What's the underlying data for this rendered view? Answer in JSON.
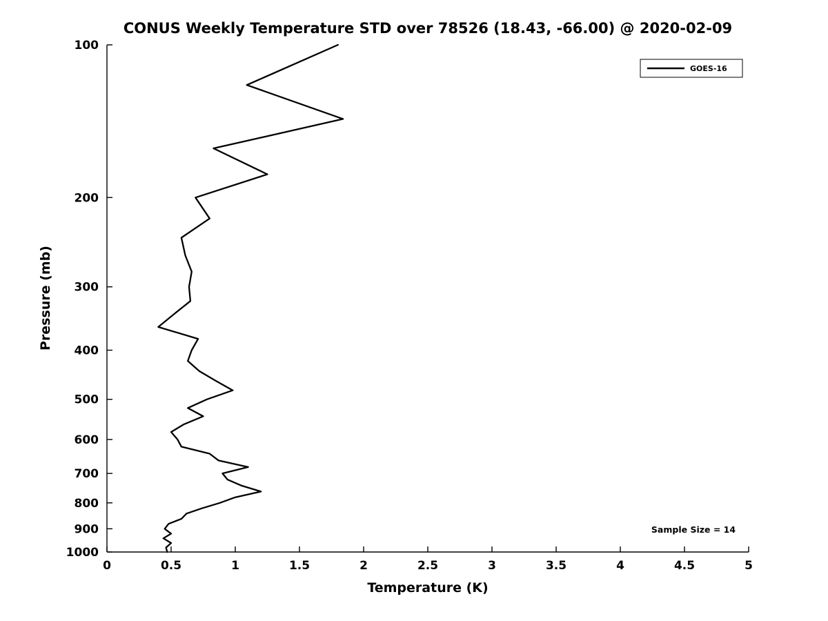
{
  "title": "CONUS Weekly Temperature STD over 78526 (18.43, -66.00) @ 2020-02-09",
  "legend": {
    "label": "GOES-16",
    "line_color": "#000000"
  },
  "annotation": {
    "sample_size_label": "Sample Size = 14"
  },
  "axes": {
    "x": {
      "label": "Temperature (K)",
      "min": 0,
      "max": 5,
      "tick_values": [
        0,
        0.5,
        1,
        1.5,
        2,
        2.5,
        3,
        3.5,
        4,
        4.5,
        5
      ],
      "tick_labels": [
        "0",
        "0.5",
        "1",
        "1.5",
        "2",
        "2.5",
        "3",
        "3.5",
        "4",
        "4.5",
        "5"
      ]
    },
    "y": {
      "label": "Pressure (mb)",
      "min": 100,
      "max": 1000,
      "scale": "log",
      "direction": "increasing-down",
      "tick_values": [
        100,
        200,
        300,
        400,
        500,
        600,
        700,
        800,
        900,
        1000
      ],
      "tick_labels": [
        "100",
        "200",
        "300",
        "400",
        "500",
        "600",
        "700",
        "800",
        "900",
        "1000"
      ]
    }
  },
  "chart_data": {
    "type": "line",
    "title": "CONUS Weekly Temperature STD over 78526 (18.43, -66.00) @ 2020-02-09",
    "xlabel": "Temperature (K)",
    "ylabel": "Pressure (mb)",
    "xlim": [
      0,
      5
    ],
    "ylim": [
      100,
      1000
    ],
    "yscale": "log",
    "grid": false,
    "legend_position": "top-right",
    "series": [
      {
        "name": "GOES-16",
        "color": "#000000",
        "pressure_mb": [
          100,
          120,
          140,
          160,
          180,
          200,
          220,
          240,
          260,
          280,
          300,
          320,
          340,
          360,
          380,
          400,
          420,
          440,
          460,
          480,
          500,
          520,
          540,
          560,
          580,
          600,
          620,
          640,
          660,
          680,
          700,
          720,
          740,
          760,
          780,
          800,
          820,
          840,
          860,
          880,
          900,
          920,
          940,
          960,
          980,
          1000
        ],
        "temperature_std_K": [
          1.8,
          1.09,
          1.84,
          0.83,
          1.25,
          0.69,
          0.8,
          0.58,
          0.61,
          0.66,
          0.64,
          0.65,
          0.52,
          0.4,
          0.71,
          0.66,
          0.63,
          0.72,
          0.85,
          0.98,
          0.78,
          0.63,
          0.75,
          0.6,
          0.5,
          0.55,
          0.58,
          0.8,
          0.87,
          1.1,
          0.9,
          0.94,
          1.05,
          1.2,
          1.0,
          0.88,
          0.74,
          0.62,
          0.58,
          0.48,
          0.45,
          0.5,
          0.44,
          0.5,
          0.46,
          0.47
        ]
      }
    ],
    "annotations": [
      "Sample Size = 14"
    ]
  }
}
